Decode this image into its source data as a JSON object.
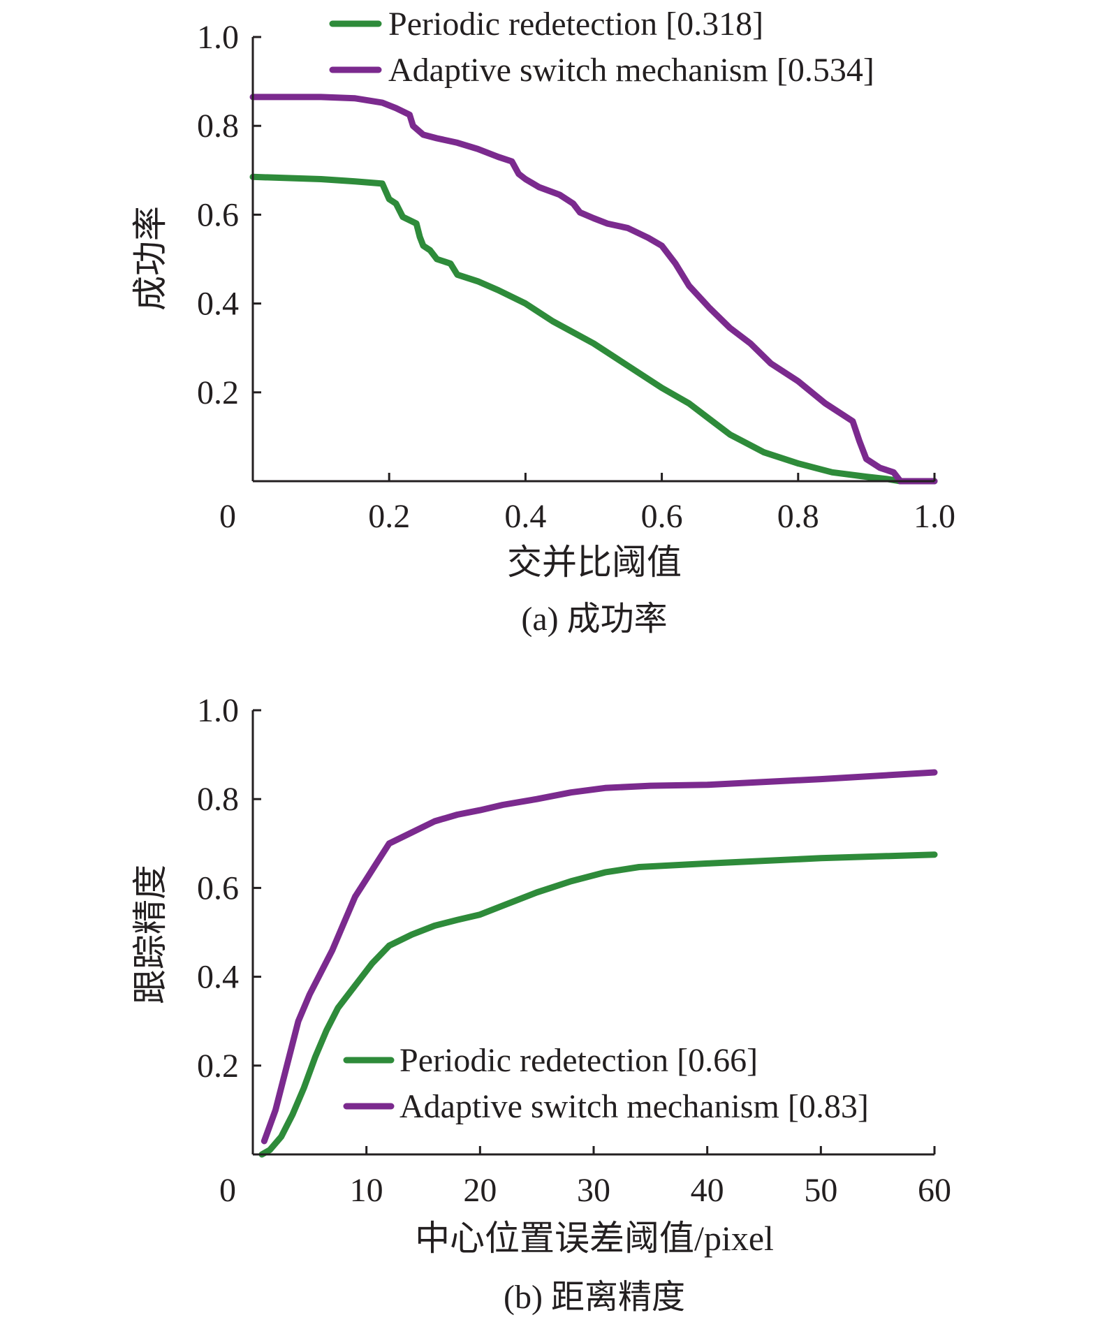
{
  "colors": {
    "periodic": "#2e8b3a",
    "adaptive": "#7b2a8e",
    "axis": "#231f20"
  },
  "chart_data": [
    {
      "id": "a",
      "type": "line",
      "caption": "(a) 成功率",
      "xlabel": "交并比阈值",
      "ylabel": "成功率",
      "xlim": [
        0,
        1.0
      ],
      "ylim": [
        0,
        1.0
      ],
      "xticks": [
        {
          "value": 0,
          "label": "0"
        },
        {
          "value": 0.2,
          "label": "0.2"
        },
        {
          "value": 0.4,
          "label": "0.4"
        },
        {
          "value": 0.6,
          "label": "0.6"
        },
        {
          "value": 0.8,
          "label": "0.8"
        },
        {
          "value": 1.0,
          "label": "1.0"
        }
      ],
      "yticks": [
        {
          "value": 0.2,
          "label": "0.2"
        },
        {
          "value": 0.4,
          "label": "0.4"
        },
        {
          "value": 0.6,
          "label": "0.6"
        },
        {
          "value": 0.8,
          "label": "0.8"
        },
        {
          "value": 1.0,
          "label": "1.0"
        }
      ],
      "legend_position": "top",
      "series": [
        {
          "key": "periodic",
          "name": "Periodic redetection [0.318]",
          "points": [
            [
              0,
              0.685
            ],
            [
              0.1,
              0.68
            ],
            [
              0.15,
              0.675
            ],
            [
              0.19,
              0.67
            ],
            [
              0.2,
              0.635
            ],
            [
              0.21,
              0.625
            ],
            [
              0.22,
              0.595
            ],
            [
              0.24,
              0.58
            ],
            [
              0.245,
              0.55
            ],
            [
              0.25,
              0.53
            ],
            [
              0.26,
              0.52
            ],
            [
              0.27,
              0.5
            ],
            [
              0.29,
              0.49
            ],
            [
              0.3,
              0.465
            ],
            [
              0.33,
              0.45
            ],
            [
              0.36,
              0.43
            ],
            [
              0.4,
              0.4
            ],
            [
              0.44,
              0.36
            ],
            [
              0.5,
              0.31
            ],
            [
              0.55,
              0.26
            ],
            [
              0.6,
              0.21
            ],
            [
              0.64,
              0.175
            ],
            [
              0.67,
              0.14
            ],
            [
              0.7,
              0.105
            ],
            [
              0.75,
              0.065
            ],
            [
              0.8,
              0.04
            ],
            [
              0.85,
              0.02
            ],
            [
              0.9,
              0.01
            ],
            [
              0.93,
              0.005
            ],
            [
              0.95,
              0.0
            ],
            [
              1.0,
              0.0
            ]
          ]
        },
        {
          "key": "adaptive",
          "name": "Adaptive switch mechanism [0.534]",
          "points": [
            [
              0,
              0.865
            ],
            [
              0.1,
              0.865
            ],
            [
              0.15,
              0.862
            ],
            [
              0.19,
              0.852
            ],
            [
              0.21,
              0.84
            ],
            [
              0.23,
              0.825
            ],
            [
              0.235,
              0.8
            ],
            [
              0.25,
              0.78
            ],
            [
              0.27,
              0.772
            ],
            [
              0.3,
              0.762
            ],
            [
              0.33,
              0.748
            ],
            [
              0.36,
              0.73
            ],
            [
              0.38,
              0.72
            ],
            [
              0.39,
              0.692
            ],
            [
              0.4,
              0.68
            ],
            [
              0.42,
              0.662
            ],
            [
              0.45,
              0.645
            ],
            [
              0.47,
              0.625
            ],
            [
              0.48,
              0.605
            ],
            [
              0.5,
              0.592
            ],
            [
              0.52,
              0.58
            ],
            [
              0.55,
              0.57
            ],
            [
              0.58,
              0.548
            ],
            [
              0.6,
              0.53
            ],
            [
              0.62,
              0.49
            ],
            [
              0.64,
              0.44
            ],
            [
              0.67,
              0.39
            ],
            [
              0.7,
              0.345
            ],
            [
              0.73,
              0.31
            ],
            [
              0.76,
              0.265
            ],
            [
              0.8,
              0.225
            ],
            [
              0.84,
              0.175
            ],
            [
              0.88,
              0.135
            ],
            [
              0.89,
              0.09
            ],
            [
              0.9,
              0.05
            ],
            [
              0.92,
              0.03
            ],
            [
              0.94,
              0.02
            ],
            [
              0.95,
              0.0
            ],
            [
              1.0,
              0.0
            ]
          ]
        }
      ]
    },
    {
      "id": "b",
      "type": "line",
      "caption": "(b) 距离精度",
      "xlabel": "中心位置误差阈值/pixel",
      "ylabel": "跟踪精度",
      "xlim": [
        0,
        60
      ],
      "ylim": [
        0,
        1.0
      ],
      "xticks": [
        {
          "value": 0,
          "label": "0"
        },
        {
          "value": 10,
          "label": "10"
        },
        {
          "value": 20,
          "label": "20"
        },
        {
          "value": 30,
          "label": "30"
        },
        {
          "value": 40,
          "label": "40"
        },
        {
          "value": 50,
          "label": "50"
        },
        {
          "value": 60,
          "label": "60"
        }
      ],
      "yticks": [
        {
          "value": 0.2,
          "label": "0.2"
        },
        {
          "value": 0.4,
          "label": "0.4"
        },
        {
          "value": 0.6,
          "label": "0.6"
        },
        {
          "value": 0.8,
          "label": "0.8"
        },
        {
          "value": 1.0,
          "label": "1.0"
        }
      ],
      "legend_position": "bottom-right",
      "series": [
        {
          "key": "periodic",
          "name": "Periodic redetection [0.66]",
          "points": [
            [
              0.8,
              0.0
            ],
            [
              1.5,
              0.01
            ],
            [
              2.5,
              0.04
            ],
            [
              3.5,
              0.09
            ],
            [
              4.5,
              0.15
            ],
            [
              5.5,
              0.22
            ],
            [
              6.5,
              0.28
            ],
            [
              7.5,
              0.33
            ],
            [
              9,
              0.38
            ],
            [
              10.5,
              0.43
            ],
            [
              12,
              0.47
            ],
            [
              14,
              0.495
            ],
            [
              16,
              0.515
            ],
            [
              18,
              0.528
            ],
            [
              20,
              0.54
            ],
            [
              22,
              0.56
            ],
            [
              25,
              0.59
            ],
            [
              28,
              0.615
            ],
            [
              31,
              0.635
            ],
            [
              34,
              0.647
            ],
            [
              40,
              0.655
            ],
            [
              50,
              0.667
            ],
            [
              60,
              0.675
            ]
          ]
        },
        {
          "key": "adaptive",
          "name": "Adaptive switch mechanism [0.83]",
          "points": [
            [
              1,
              0.03
            ],
            [
              2,
              0.1
            ],
            [
              3,
              0.2
            ],
            [
              4,
              0.3
            ],
            [
              5,
              0.36
            ],
            [
              6,
              0.41
            ],
            [
              7,
              0.46
            ],
            [
              8,
              0.52
            ],
            [
              9,
              0.58
            ],
            [
              10,
              0.62
            ],
            [
              11,
              0.66
            ],
            [
              12,
              0.7
            ],
            [
              14,
              0.725
            ],
            [
              16,
              0.75
            ],
            [
              18,
              0.765
            ],
            [
              20,
              0.775
            ],
            [
              22,
              0.787
            ],
            [
              25,
              0.8
            ],
            [
              28,
              0.815
            ],
            [
              31,
              0.825
            ],
            [
              35,
              0.83
            ],
            [
              40,
              0.832
            ],
            [
              50,
              0.845
            ],
            [
              60,
              0.86
            ]
          ]
        }
      ]
    }
  ]
}
